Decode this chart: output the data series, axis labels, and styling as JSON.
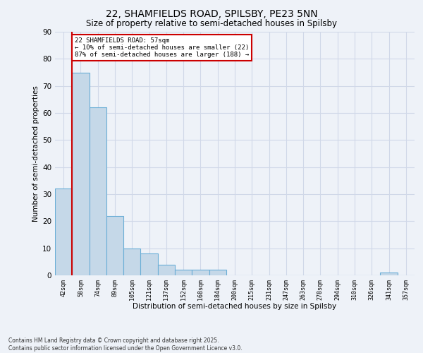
{
  "title_line1": "22, SHAMFIELDS ROAD, SPILSBY, PE23 5NN",
  "title_line2": "Size of property relative to semi-detached houses in Spilsby",
  "xlabel": "Distribution of semi-detached houses by size in Spilsby",
  "ylabel": "Number of semi-detached properties",
  "categories": [
    "42sqm",
    "58sqm",
    "74sqm",
    "89sqm",
    "105sqm",
    "121sqm",
    "137sqm",
    "152sqm",
    "168sqm",
    "184sqm",
    "200sqm",
    "215sqm",
    "231sqm",
    "247sqm",
    "263sqm",
    "278sqm",
    "294sqm",
    "310sqm",
    "326sqm",
    "341sqm",
    "357sqm"
  ],
  "values": [
    32,
    75,
    62,
    22,
    10,
    8,
    4,
    2,
    2,
    2,
    0,
    0,
    0,
    0,
    0,
    0,
    0,
    0,
    0,
    1,
    0
  ],
  "bar_color": "#c5d8e8",
  "bar_edge_color": "#6aaed6",
  "vline_x_index": 1,
  "vline_color": "#cc0000",
  "annotation_title": "22 SHAMFIELDS ROAD: 57sqm",
  "annotation_line1": "← 10% of semi-detached houses are smaller (22)",
  "annotation_line2": "87% of semi-detached houses are larger (188) →",
  "annotation_box_color": "#cc0000",
  "ylim": [
    0,
    90
  ],
  "yticks": [
    0,
    10,
    20,
    30,
    40,
    50,
    60,
    70,
    80,
    90
  ],
  "grid_color": "#d0d8e8",
  "background_color": "#eef2f8",
  "footer": "Contains HM Land Registry data © Crown copyright and database right 2025.\nContains public sector information licensed under the Open Government Licence v3.0."
}
